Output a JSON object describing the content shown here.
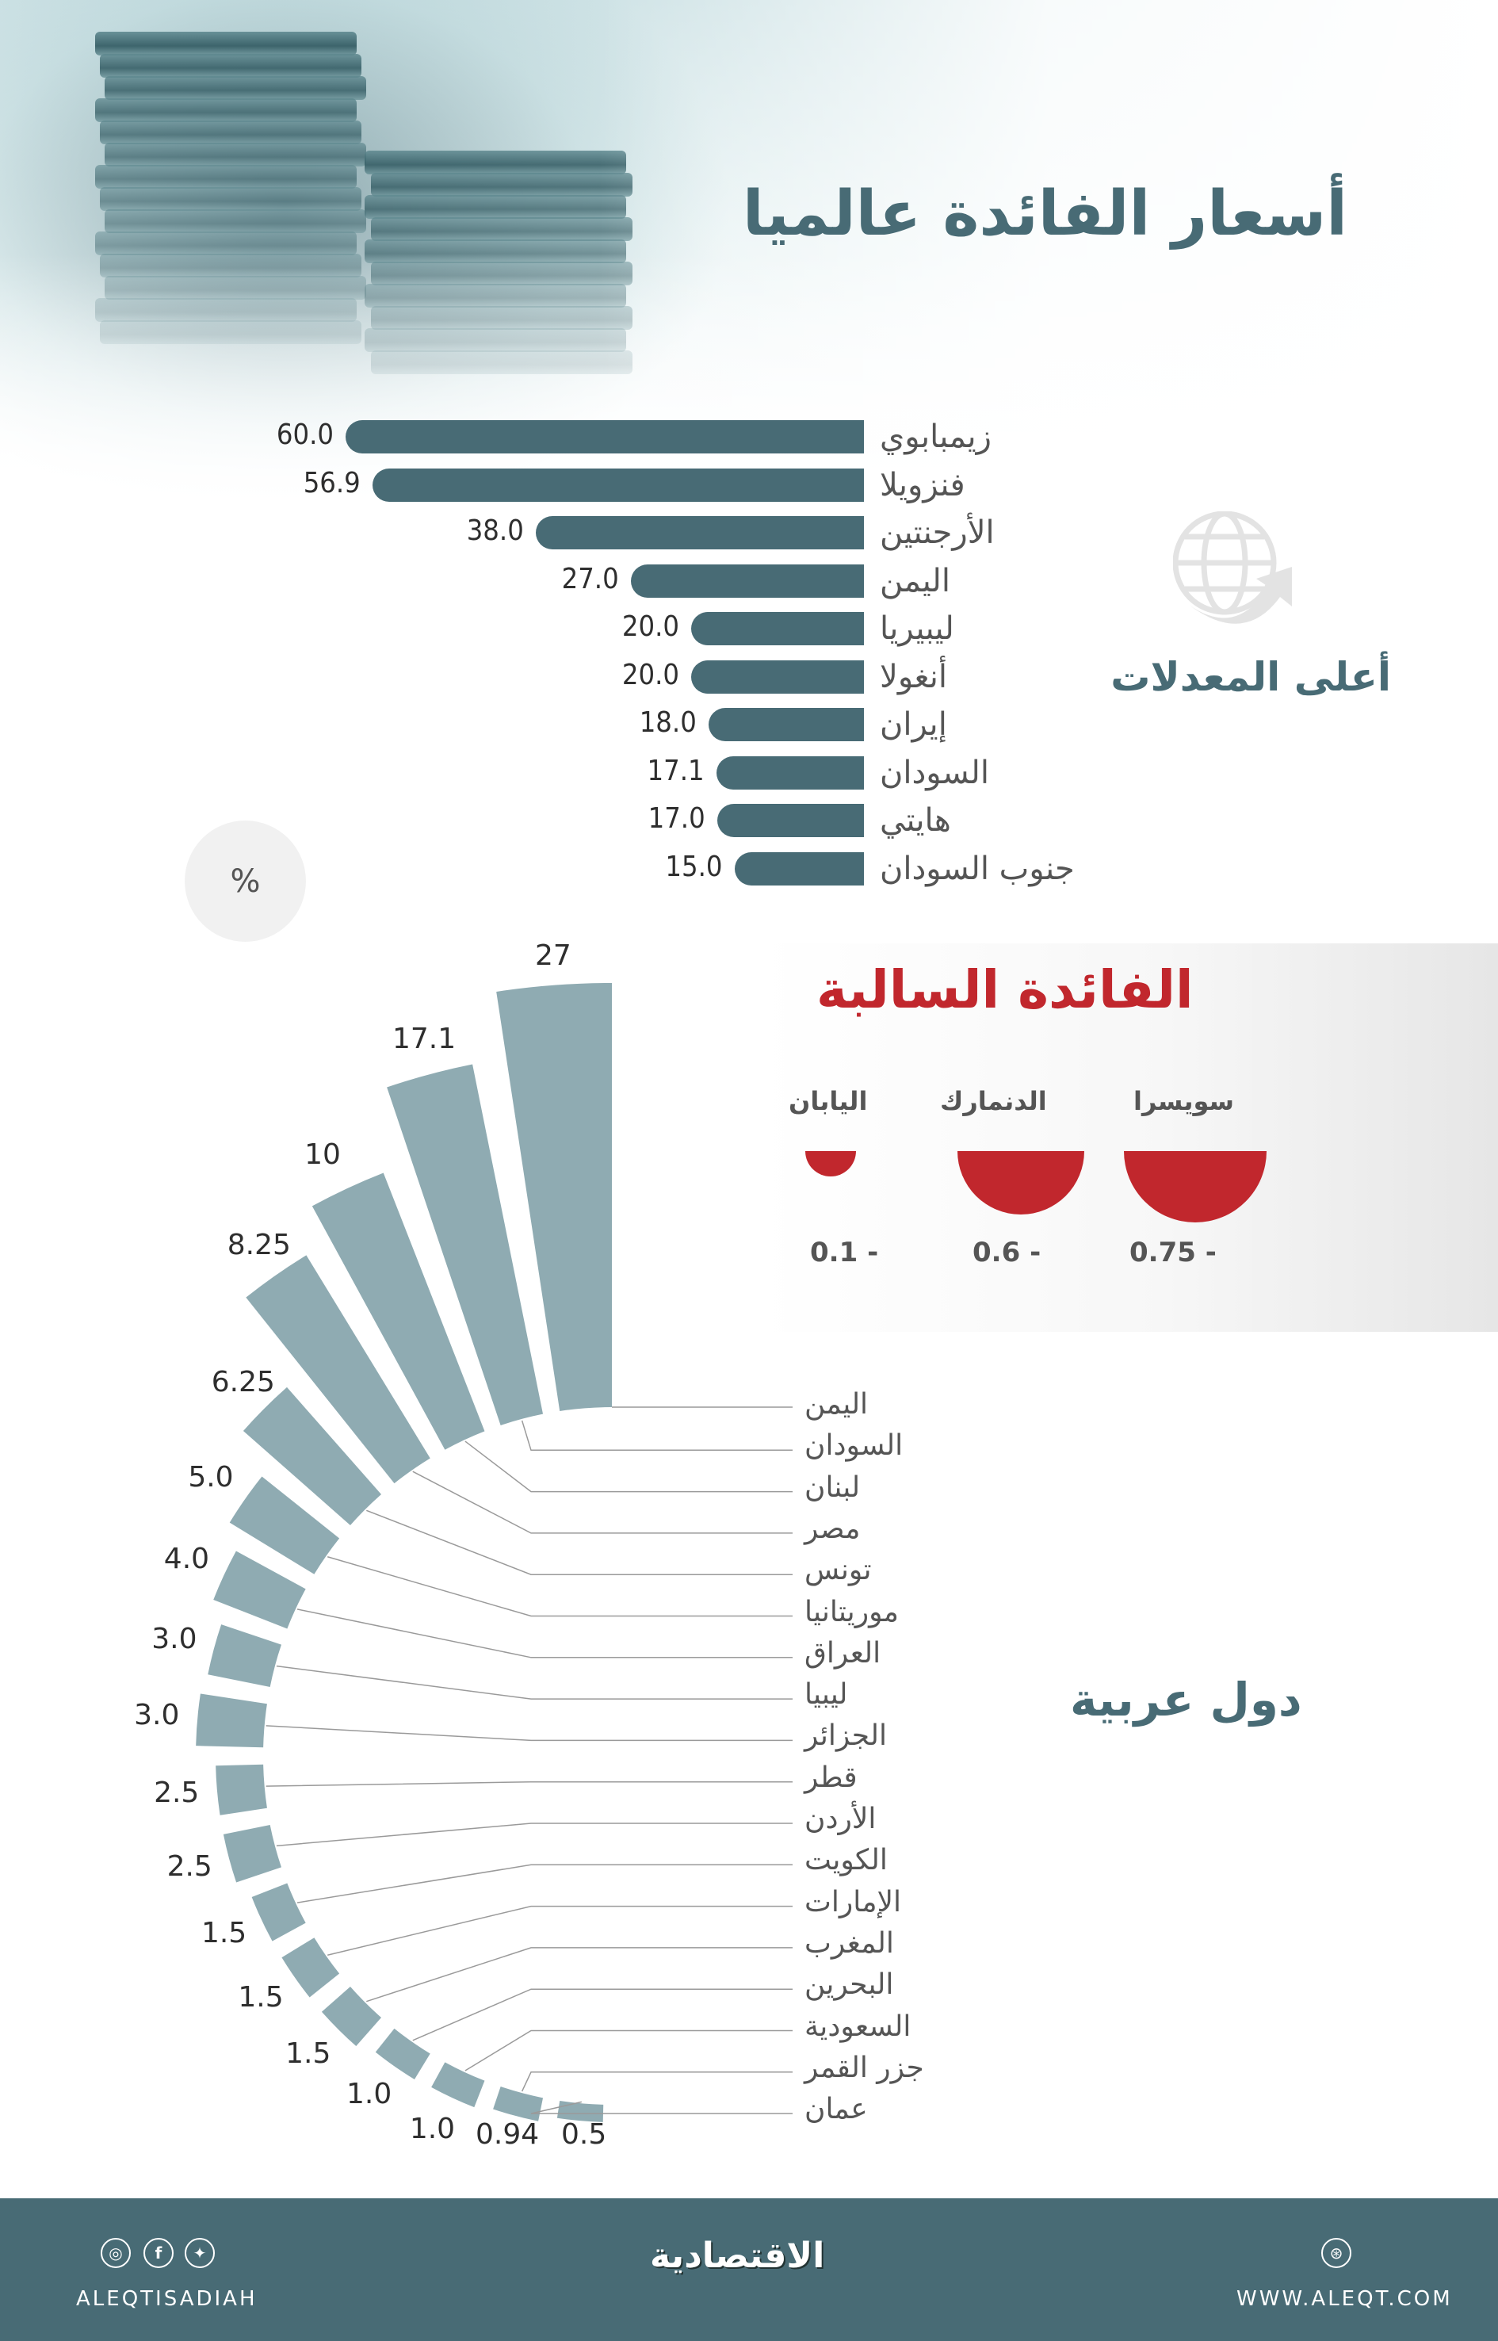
{
  "header": {
    "title": "أسعار الفائدة عالميا",
    "subtitle": "أعلى المعدلات",
    "unit_badge": "%",
    "icon": "globe-arrow-icon"
  },
  "negative_section": {
    "title": "الفائدة السالبة",
    "items": [
      {
        "name": "سويسرا",
        "value_label": "0.75 -",
        "value": -0.75
      },
      {
        "name": "الدنمارك",
        "value_label": "0.6 -",
        "value": -0.6
      },
      {
        "name": "اليابان",
        "value_label": "0.1 -",
        "value": -0.1
      }
    ]
  },
  "arab_section": {
    "title": "دول عربية"
  },
  "footer": {
    "social_handle": "ALEQTISADIAH",
    "logo": "الاقتصادية",
    "website": "WWW.ALEQT.COM",
    "social_icons": [
      "instagram-icon",
      "facebook-icon",
      "twitter-icon"
    ],
    "web_icon": "dribbble-icon"
  },
  "colors": {
    "primary": "#486b75",
    "radial_bar": "#8fabb2",
    "negative": "#c1272d",
    "text": "#555555"
  },
  "chart_data": [
    {
      "type": "bar",
      "orientation": "horizontal",
      "title": "أعلى المعدلات",
      "unit": "%",
      "categories": [
        "زيمبابوي",
        "فنزويلا",
        "الأرجنتين",
        "اليمن",
        "ليبيريا",
        "أنغولا",
        "إيران",
        "السودان",
        "هايتي",
        "جنوب السودان"
      ],
      "values": [
        60.0,
        56.9,
        38.0,
        27.0,
        20.0,
        20.0,
        18.0,
        17.1,
        17.0,
        15.0
      ],
      "labels": [
        "60.0",
        "56.9",
        "38.0",
        "27.0",
        "20.0",
        "20.0",
        "18.0",
        "17.1",
        "17.0",
        "15.0"
      ],
      "grid": false
    },
    {
      "type": "bar",
      "variant": "semicircle",
      "title": "الفائدة السالبة",
      "categories": [
        "سويسرا",
        "الدنمارك",
        "اليابان"
      ],
      "values": [
        -0.75,
        -0.6,
        -0.1
      ],
      "labels": [
        "0.75 -",
        "0.6 -",
        "0.1 -"
      ]
    },
    {
      "type": "bar",
      "variant": "radial",
      "title": "دول عربية",
      "unit": "%",
      "categories": [
        "اليمن",
        "السودان",
        "لبنان",
        "مصر",
        "تونس",
        "موريتانيا",
        "العراق",
        "ليبيا",
        "الجزائر",
        "قطر",
        "الأردن",
        "الكويت",
        "الإمارات",
        "المغرب",
        "البحرين",
        "السعودية",
        "جزر القمر",
        "عمان"
      ],
      "values": [
        27,
        17.1,
        10,
        8.25,
        6.25,
        5.0,
        4.0,
        3.0,
        3.0,
        2.5,
        2.5,
        1.5,
        1.5,
        1.5,
        1.0,
        1.0,
        0.94,
        0.5
      ],
      "labels": [
        "27",
        "17.1",
        "10",
        "8.25",
        "6.25",
        "5.0",
        "4.0",
        "3.0",
        "3.0",
        "2.5",
        "2.5",
        "1.5",
        "1.5",
        "1.5",
        "1.0",
        "1.0",
        "0.94",
        "0.5"
      ]
    }
  ]
}
